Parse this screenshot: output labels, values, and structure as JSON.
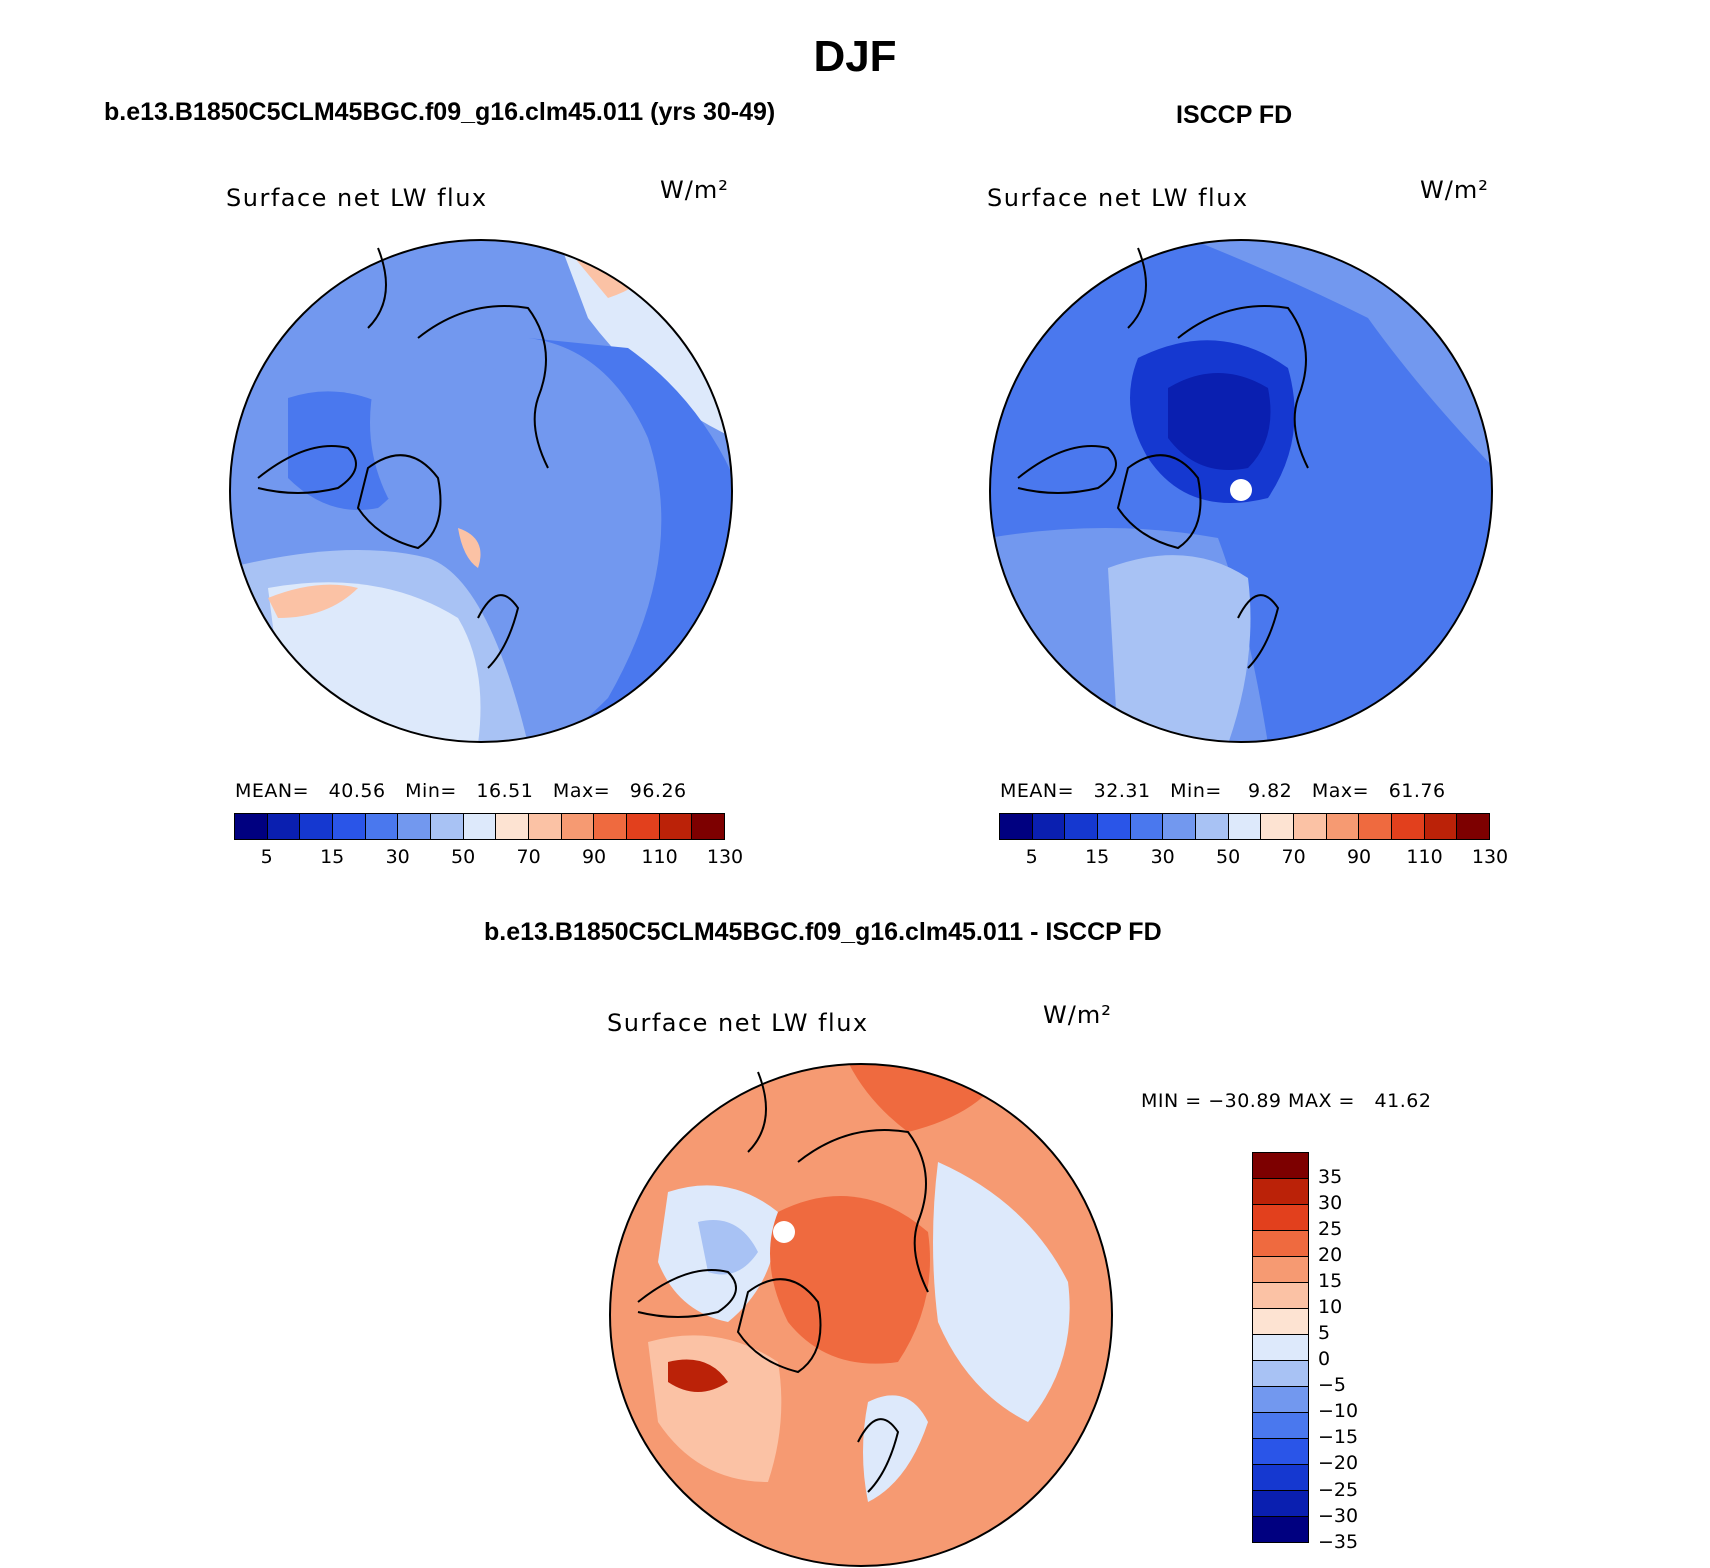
{
  "title": "DJF",
  "panels": {
    "model": {
      "title": "b.e13.B1850C5CLM45BGC.f09_g16.clm45.011 (yrs 30-49)",
      "label": "Surface net LW flux",
      "units": "W/m²",
      "stats": "MEAN=   40.56   Min=   16.51   Max=   96.26"
    },
    "obs": {
      "title": "ISCCP FD",
      "label": "Surface net LW flux",
      "units": "W/m²",
      "stats": "MEAN=   32.31   Min=    9.82   Max=   61.76"
    },
    "diff": {
      "title": "b.e13.B1850C5CLM45BGC.f09_g16.clm45.011 - ISCCP FD",
      "label": "Surface net LW flux",
      "units": "W/m²",
      "minmax": "MIN = −30.89 MAX =   41.62"
    }
  },
  "colorbar_main": {
    "colors": [
      "#000080",
      "#0a1fb0",
      "#1538d0",
      "#2a55e8",
      "#4a78ee",
      "#7298ef",
      "#a8c2f4",
      "#dde9fb",
      "#fde3d2",
      "#fbc2a5",
      "#f69a72",
      "#ef6a3f",
      "#e2401d",
      "#bb2208",
      "#7d0000"
    ],
    "tick_labels": [
      "5",
      "15",
      "30",
      "50",
      "70",
      "90",
      "110",
      "130"
    ]
  },
  "colorbar_diff": {
    "colors": [
      "#7d0000",
      "#bb2208",
      "#e2401d",
      "#ef6a3f",
      "#f69a72",
      "#fbc2a5",
      "#fde3d2",
      "#dde9fb",
      "#a8c2f4",
      "#7298ef",
      "#4a78ee",
      "#2a55e8",
      "#1538d0",
      "#0a1fb0",
      "#000080"
    ],
    "tick_labels": [
      "35",
      "30",
      "25",
      "20",
      "15",
      "10",
      "5",
      "0",
      "−5",
      "−10",
      "−15",
      "−20",
      "−25",
      "−30",
      "−35"
    ]
  },
  "map_colors": {
    "model": {
      "base": "#7298ef",
      "light": "#a8c2f4",
      "pale": "#dde9fb",
      "dark": "#4a78ee",
      "warm": "#fbc2a5"
    },
    "obs": {
      "base": "#4a78ee",
      "light": "#7298ef",
      "pale": "#a8c2f4",
      "dark": "#1538d0"
    },
    "diff": {
      "base": "#f69a72",
      "light": "#fbc2a5",
      "pale": "#dde9fb",
      "hot": "#ef6a3f",
      "cool": "#a8c2f4"
    }
  }
}
